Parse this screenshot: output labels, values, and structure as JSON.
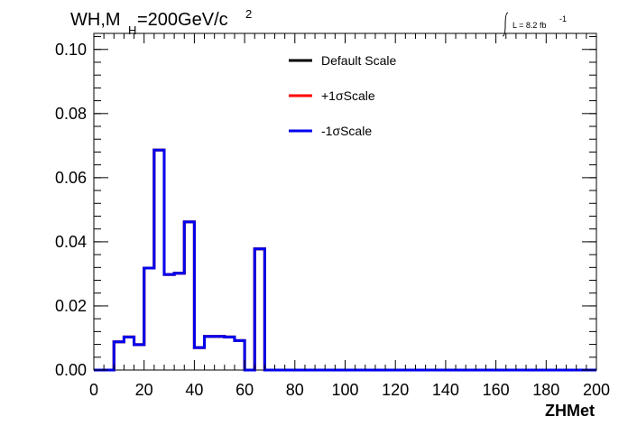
{
  "chart_data": {
    "type": "line",
    "title": {
      "main": "WH,M",
      "sub": "H",
      "rest": "=200GeV/c",
      "sup": "2"
    },
    "lumi": {
      "label": "L = 8.2 fb",
      "sup": "-1"
    },
    "xlabel": "ZHMet",
    "ylabel": "",
    "xlim": [
      0,
      200
    ],
    "ylim": [
      0,
      0.105
    ],
    "x_ticks": [
      "0",
      "20",
      "40",
      "60",
      "80",
      "100",
      "120",
      "140",
      "160",
      "180",
      "200"
    ],
    "y_ticks": [
      "0.00",
      "0.02",
      "0.04",
      "0.06",
      "0.08",
      "0.10"
    ],
    "bin_edges": [
      0,
      8,
      12,
      16,
      20,
      24,
      28,
      32,
      36,
      40,
      44,
      48,
      52,
      56,
      60,
      64,
      68,
      200
    ],
    "series": [
      {
        "name": "Default Scale",
        "color": "#000000",
        "values": [
          0,
          0.0088,
          0.0103,
          0.0079,
          0.0318,
          0.0686,
          0.0298,
          0.0302,
          0.0462,
          0.007,
          0.0105,
          0.0105,
          0.0103,
          0.0092,
          0,
          0.0378,
          0
        ]
      },
      {
        "name": "+1σScale",
        "color": "#ff0000",
        "values": [
          0,
          0.0088,
          0.0103,
          0.0079,
          0.0318,
          0.0686,
          0.0298,
          0.0302,
          0.0462,
          0.007,
          0.0105,
          0.0105,
          0.0103,
          0.0092,
          0,
          0.0378,
          0
        ]
      },
      {
        "name": "-1σScale",
        "color": "#0000ee",
        "values": [
          0,
          0.0088,
          0.0103,
          0.0079,
          0.0318,
          0.0686,
          0.0298,
          0.0302,
          0.0462,
          0.007,
          0.0105,
          0.0105,
          0.0103,
          0.0092,
          0,
          0.0378,
          0
        ]
      }
    ],
    "legend_position": "top-right"
  }
}
